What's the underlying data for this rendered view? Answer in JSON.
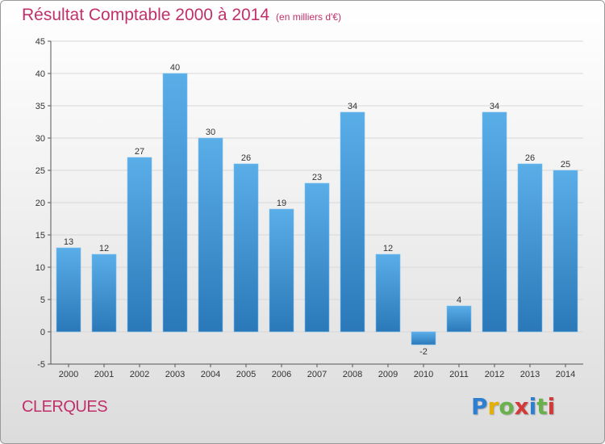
{
  "header": {
    "title": "Résultat Comptable 2000 à 2014",
    "unit_note": "(en milliers d'€)"
  },
  "footer": {
    "commune": "CLERQUES",
    "logo_text": "Proxiti",
    "logo_letters": [
      {
        "ch": "P",
        "color": "#2f7fd0"
      },
      {
        "ch": "r",
        "color": "#e6b000"
      },
      {
        "ch": "o",
        "color": "#6ab04c"
      },
      {
        "ch": "x",
        "color": "#d23a3a"
      },
      {
        "ch": "i",
        "color": "#2f7fd0"
      },
      {
        "ch": "t",
        "color": "#6ab04c"
      },
      {
        "ch": "i",
        "color": "#d23a3a"
      }
    ]
  },
  "colors": {
    "accent": "#c0306a",
    "bar_top": "#5aaee8",
    "bar_bottom": "#2a78b8",
    "grid": "#d8d8d8",
    "axis": "#555555"
  },
  "chart_data": {
    "type": "bar",
    "title": "Résultat Comptable 2000 à 2014",
    "subtitle": "(en milliers d'€)",
    "xlabel": "",
    "ylabel": "",
    "categories": [
      "2000",
      "2001",
      "2002",
      "2003",
      "2004",
      "2005",
      "2006",
      "2007",
      "2008",
      "2009",
      "2010",
      "2011",
      "2012",
      "2013",
      "2014"
    ],
    "values": [
      13,
      12,
      27,
      40,
      30,
      26,
      19,
      23,
      34,
      12,
      -2,
      4,
      34,
      26,
      25
    ],
    "ylim": [
      -5,
      45
    ],
    "yticks": [
      -5,
      0,
      5,
      10,
      15,
      20,
      25,
      30,
      35,
      40,
      45
    ],
    "grid": true,
    "legend": "none"
  }
}
